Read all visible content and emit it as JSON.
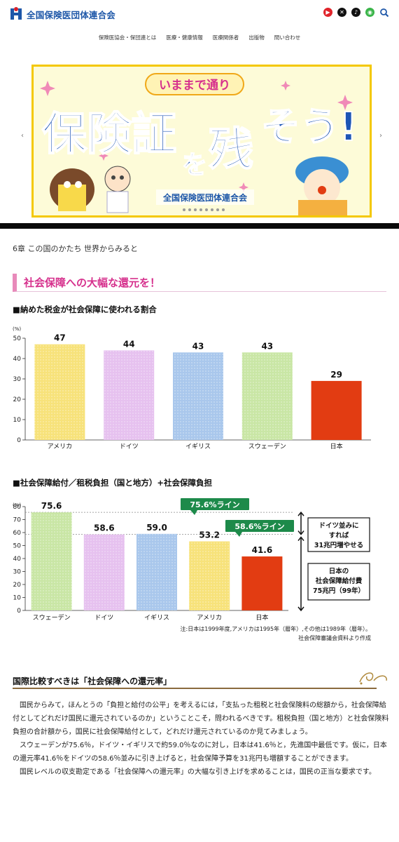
{
  "header": {
    "site_name": "全国保険医団体連合会",
    "sns_icons": [
      "youtube-icon",
      "x-icon",
      "tiktok-icon",
      "line-icon",
      "search-icon"
    ]
  },
  "nav": {
    "items": [
      "保険医協会・保団連とは",
      "医療・健康情報",
      "医療関係者",
      "出版物",
      "問い合わせ"
    ]
  },
  "banner": {
    "ribbon": "いままで通り",
    "main_text_1": "保険証",
    "main_text_2": "を",
    "main_text_3": "残",
    "main_text_4": "そう!",
    "org": "全国保険医団体連合会"
  },
  "chapter": "6章 この国のかたち 世界からみると",
  "section_title": "社会保障への大幅な還元を！",
  "chart1_title": "■納めた税金が社会保障に使われる割合",
  "chart2_title": "■社会保障給付／租税負担（国と地方）+社会保障負担",
  "chart_data": [
    {
      "type": "bar",
      "ylabel": "(%)",
      "ylim": [
        0,
        50
      ],
      "yticks": [
        0,
        10,
        20,
        30,
        40,
        50
      ],
      "categories": [
        "アメリカ",
        "ドイツ",
        "イギリス",
        "スウェーデン",
        "日本"
      ],
      "values": [
        47,
        44,
        43,
        43,
        29
      ],
      "colors": [
        "#f7e27a",
        "#e6c1ef",
        "#a9c7ec",
        "#c9e6a5",
        "#e23c12"
      ],
      "grid": false
    },
    {
      "type": "bar",
      "ylabel": "(%)",
      "ylim": [
        0,
        80
      ],
      "yticks": [
        0,
        10,
        20,
        30,
        40,
        50,
        60,
        70,
        80
      ],
      "categories": [
        "スウェーデン",
        "ドイツ",
        "イギリス",
        "アメリカ",
        "日本"
      ],
      "values": [
        75.6,
        58.6,
        59.0,
        53.2,
        41.6
      ],
      "value_labels": [
        "75.6",
        "58.6",
        "59.0",
        "53.2",
        "41.6"
      ],
      "colors": [
        "#c9e6a5",
        "#e6c1ef",
        "#a9c7ec",
        "#f7e27a",
        "#e23c12"
      ],
      "reference_lines": [
        {
          "value": 75.6,
          "label": "75.6%ライン"
        },
        {
          "value": 58.6,
          "label": "58.6%ライン"
        }
      ],
      "annotations": [
        {
          "text_lines": [
            "ドイツ並みに",
            "すれば",
            "31兆円増やせる"
          ]
        },
        {
          "text_lines": [
            "日本の",
            "社会保障給付費",
            "75兆円（99年）"
          ]
        }
      ],
      "grid": false
    }
  ],
  "chart2_note_1": "注:日本は1999年度,アメリカは1995年（暦年）,その他は1989年（暦年）。",
  "chart2_note_2": "社会保障審議会資料より作成",
  "subheading": "国際比較すべきは「社会保障への還元率」",
  "paragraphs": [
    "国民からみて，ほんとうの「負担と給付の公平」を考えるには，「支払った租税と社会保険料の総額から，社会保障給付としてどれだけ国民に還元されているのか」ということこそ，問われるべきです。租税負担（国と地方）と社会保険料負担の合計額から，国民に社会保障給付として，どれだけ還元されているのか見てみましょう。",
    "スウェーデンが75.6％，ドイツ・イギリスで約59.0％なのに対し，日本は41.6％と，先進国中最低です。仮に，日本の還元率41.6％をドイツの58.6％並みに引き上げると，社会保障予算を31兆円も増額することができます。",
    "国民レベルの収支勘定である「社会保障への還元率」の大幅な引き上げを求めることは，国民の正当な要求です。"
  ]
}
